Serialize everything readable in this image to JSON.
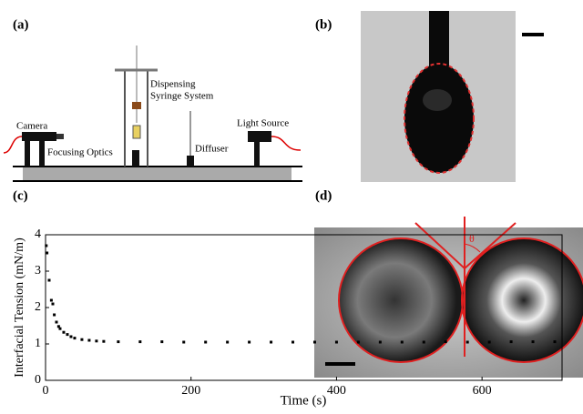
{
  "panels": {
    "a": "(a)",
    "b": "(b)",
    "c": "(c)",
    "d": "(d)"
  },
  "schematic": {
    "camera": "Camera",
    "focusing_optics": "Focusing Optics",
    "dispensing": "Dispensing",
    "syringe_system": "Syringe System",
    "diffuser": "Diffuser",
    "light_source": "Light Source"
  },
  "contact_angle": {
    "symbol": "θ"
  },
  "chart_data": {
    "type": "scatter",
    "xlabel": "Time (s)",
    "ylabel": "Interfacial Tension (mN/m)",
    "x": [
      1,
      2,
      5,
      8,
      10,
      12,
      15,
      18,
      20,
      25,
      30,
      35,
      40,
      50,
      60,
      70,
      80,
      100,
      130,
      160,
      190,
      220,
      250,
      280,
      310,
      340,
      370,
      400,
      430,
      460,
      490,
      520,
      550,
      580,
      610,
      640,
      670,
      700
    ],
    "values": [
      3.7,
      3.5,
      2.75,
      2.2,
      2.1,
      1.8,
      1.6,
      1.48,
      1.42,
      1.32,
      1.26,
      1.2,
      1.16,
      1.12,
      1.1,
      1.08,
      1.07,
      1.06,
      1.06,
      1.06,
      1.05,
      1.05,
      1.05,
      1.05,
      1.05,
      1.05,
      1.05,
      1.05,
      1.05,
      1.05,
      1.05,
      1.05,
      1.06,
      1.05,
      1.05,
      1.06,
      1.06,
      1.06
    ],
    "color": "#000000",
    "xlim": [
      0,
      710
    ],
    "xticks": [
      0,
      200,
      400,
      600
    ],
    "ylim": [
      0,
      4
    ],
    "yticks": [
      0,
      1,
      2,
      3,
      4
    ]
  }
}
